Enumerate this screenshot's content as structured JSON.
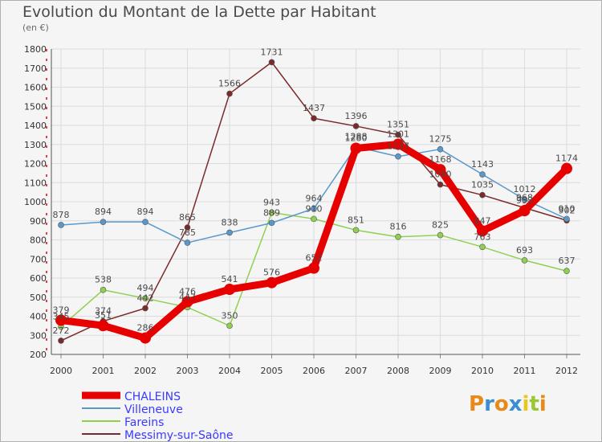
{
  "title": "Evolution du Montant de la Dette par Habitant",
  "subtitle": "(en €)",
  "logo": {
    "letters": [
      "P",
      "r",
      "o",
      "x",
      "i",
      "t",
      "i"
    ],
    "colors": [
      "#e88a1a",
      "#3a8fd4",
      "#e88a1a",
      "#3a8fd4",
      "#e8c81a",
      "#9ac832",
      "#e88a1a"
    ]
  },
  "chart_data": {
    "type": "line",
    "categories": [
      "2000",
      "2001",
      "2002",
      "2003",
      "2004",
      "2005",
      "2006",
      "2007",
      "2008",
      "2009",
      "2010",
      "2011",
      "2012"
    ],
    "ylim": [
      200,
      1800
    ],
    "yticks": [
      "200",
      "300",
      "400",
      "500",
      "600",
      "700",
      "800",
      "900",
      "1000",
      "1100",
      "1200",
      "1300",
      "1400",
      "1500",
      "1600",
      "1700",
      "1800"
    ],
    "grid": true,
    "legend_position": "bottom-left",
    "series": [
      {
        "name": "CHALEINS",
        "color": "#e60000",
        "legend_color": "#3a3aff",
        "values": [
          379,
          351,
          286,
          476,
          541,
          576,
          652,
          1280,
          1301,
          1168,
          847,
          953,
          1174
        ],
        "labels": [
          "379",
          "351",
          "286",
          "476",
          "541",
          "576",
          "652",
          "1280",
          "1301",
          "1168",
          "847",
          "953",
          "1174"
        ]
      },
      {
        "name": "Villeneuve",
        "color": "#5a98cc",
        "legend_color": "#3a3aff",
        "values": [
          878,
          894,
          894,
          785,
          838,
          889,
          964,
          1288,
          1237,
          1275,
          1143,
          1012,
          910
        ],
        "labels": [
          "878",
          "894",
          "894",
          "785",
          "838",
          "889",
          "964",
          "1288",
          "1237",
          "1275",
          "1143",
          "1012",
          "910"
        ]
      },
      {
        "name": "Fareins",
        "color": "#90d050",
        "legend_color": "#3a3aff",
        "values": [
          345,
          538,
          494,
          447,
          350,
          943,
          910,
          851,
          816,
          825,
          763,
          693,
          637
        ],
        "labels": [
          "345",
          "538",
          "494",
          "447",
          "350",
          "943",
          "910",
          "851",
          "816",
          "825",
          "763",
          "693",
          "637"
        ]
      },
      {
        "name": "Messimy-sur-Saône",
        "color": "#7a2a2a",
        "legend_color": "#3a3aff",
        "values": [
          272,
          374,
          442,
          865,
          1566,
          1731,
          1437,
          1396,
          1351,
          1090,
          1035,
          968,
          902
        ],
        "labels": [
          "272",
          "374",
          "442",
          "865",
          "1566",
          "1731",
          "1437",
          "1396",
          "1351",
          "1090",
          "1035",
          "968",
          "902"
        ]
      }
    ]
  }
}
